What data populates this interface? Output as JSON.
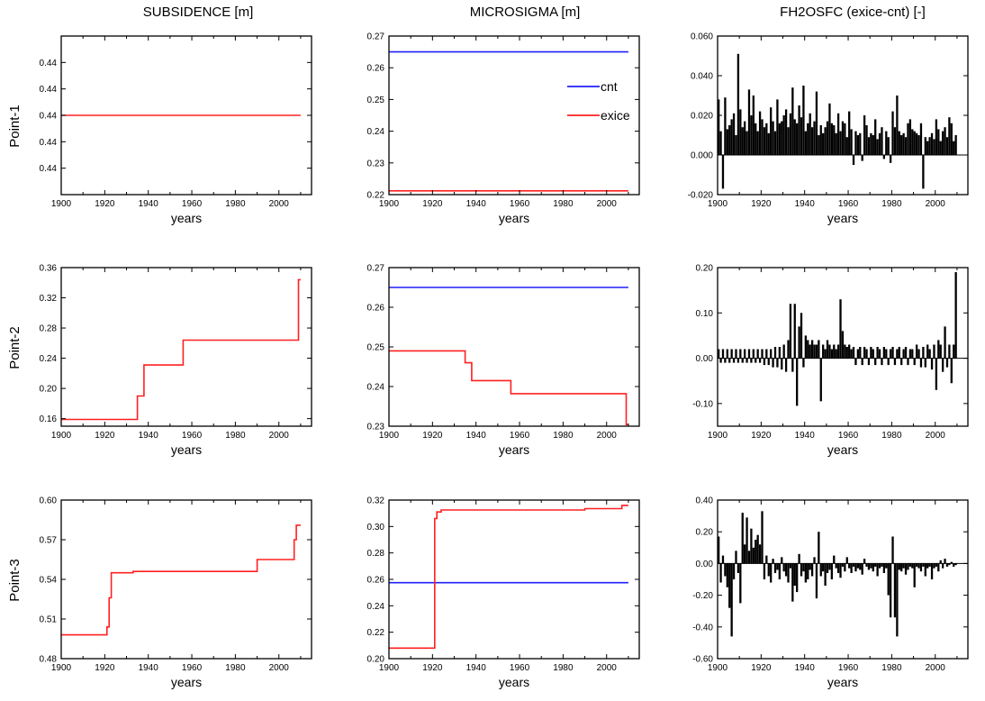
{
  "figure": {
    "columns": [
      "SUBSIDENCE [m]",
      "MICROSIGMA [m]",
      "FH2OSFC (exice-cnt) [-]"
    ],
    "rows": [
      "Point-1",
      "Point-2",
      "Point-3"
    ],
    "line_color": "#ff2020",
    "cnt_color": "#2020ff",
    "bar_color": "#000000"
  },
  "chart_data": [
    {
      "type": "line",
      "column": 0,
      "row": 0,
      "xlabel": "years",
      "xlim": [
        1900,
        2015
      ],
      "xticks": [
        1900,
        1920,
        1940,
        1960,
        1980,
        2000
      ],
      "ylim": [
        0,
        6
      ],
      "yticks": [
        1,
        2,
        3,
        4,
        5
      ],
      "ytick_labels": [
        "0.44",
        "0.44",
        "0.44",
        "0.44",
        "0.44"
      ],
      "series": [
        {
          "color": "#ff2020",
          "points": [
            [
              1900,
              3
            ],
            [
              2010,
              3
            ]
          ]
        }
      ]
    },
    {
      "type": "line",
      "column": 1,
      "row": 0,
      "xlabel": "years",
      "xlim": [
        1900,
        2015
      ],
      "xticks": [
        1900,
        1920,
        1940,
        1960,
        1980,
        2000
      ],
      "ylim": [
        0.22,
        0.27
      ],
      "yticks": [
        0.22,
        0.23,
        0.24,
        0.25,
        0.26,
        0.27
      ],
      "ytick_labels": [
        "0.22",
        "0.23",
        "0.24",
        "0.25",
        "0.26",
        "0.27"
      ],
      "legend": {
        "position": "top-right",
        "entries": [
          {
            "label": "cnt",
            "color": "#2020ff"
          },
          {
            "label": "exice",
            "color": "#ff2020"
          }
        ]
      },
      "series": [
        {
          "name": "cnt",
          "color": "#2020ff",
          "points": [
            [
              1900,
              0.265
            ],
            [
              2010,
              0.265
            ]
          ]
        },
        {
          "name": "exice",
          "color": "#ff2020",
          "points": [
            [
              1900,
              0.2212
            ],
            [
              2010,
              0.2212
            ]
          ]
        }
      ]
    },
    {
      "type": "bar",
      "column": 2,
      "row": 0,
      "xlabel": "years",
      "xlim": [
        1900,
        2015
      ],
      "xticks": [
        1900,
        1920,
        1940,
        1960,
        1980,
        2000
      ],
      "ylim": [
        -0.02,
        0.06
      ],
      "yticks": [
        -0.02,
        0.0,
        0.02,
        0.04,
        0.06
      ],
      "ytick_labels": [
        "-0.020",
        "0.000",
        "0.020",
        "0.040",
        "0.060"
      ],
      "x": [
        1900,
        1901,
        1902,
        1903,
        1904,
        1905,
        1906,
        1907,
        1908,
        1909,
        1910,
        1911,
        1912,
        1913,
        1914,
        1915,
        1916,
        1917,
        1918,
        1919,
        1920,
        1921,
        1922,
        1923,
        1924,
        1925,
        1926,
        1927,
        1928,
        1929,
        1930,
        1931,
        1932,
        1933,
        1934,
        1935,
        1936,
        1937,
        1938,
        1939,
        1940,
        1941,
        1942,
        1943,
        1944,
        1945,
        1946,
        1947,
        1948,
        1949,
        1950,
        1951,
        1952,
        1953,
        1954,
        1955,
        1956,
        1957,
        1958,
        1959,
        1960,
        1961,
        1962,
        1963,
        1964,
        1965,
        1966,
        1967,
        1968,
        1969,
        1970,
        1971,
        1972,
        1973,
        1974,
        1975,
        1976,
        1977,
        1978,
        1979,
        1980,
        1981,
        1982,
        1983,
        1984,
        1985,
        1986,
        1987,
        1988,
        1989,
        1990,
        1991,
        1992,
        1993,
        1994,
        1995,
        1996,
        1997,
        1998,
        1999,
        2000,
        2001,
        2002,
        2003,
        2004,
        2005,
        2006,
        2007,
        2008,
        2009
      ],
      "values": [
        0.028,
        0.012,
        -0.017,
        0.029,
        0.013,
        0.015,
        0.018,
        0.021,
        0.01,
        0.051,
        0.023,
        0.014,
        0.017,
        0.012,
        0.033,
        0.02,
        0.03,
        0.016,
        0.012,
        0.022,
        0.018,
        0.014,
        0.016,
        0.011,
        0.024,
        0.017,
        0.012,
        0.028,
        0.016,
        0.017,
        0.02,
        0.023,
        0.014,
        0.021,
        0.034,
        0.018,
        0.016,
        0.025,
        0.019,
        0.035,
        0.012,
        0.016,
        0.021,
        0.014,
        0.017,
        0.032,
        0.01,
        0.015,
        0.011,
        0.014,
        0.017,
        0.026,
        0.016,
        0.015,
        0.011,
        0.021,
        0.012,
        0.017,
        0.016,
        0.009,
        0.022,
        0.013,
        -0.005,
        0.012,
        0.01,
        0.011,
        -0.003,
        0.02,
        0.015,
        0.009,
        0.011,
        0.01,
        0.018,
        0.008,
        0.011,
        0.014,
        -0.002,
        0.012,
        0.009,
        -0.004,
        0.022,
        0.014,
        0.03,
        0.012,
        0.01,
        0.011,
        0.009,
        0.016,
        0.018,
        0.013,
        0.012,
        0.011,
        0.01,
        0.016,
        -0.017,
        0.009,
        0.007,
        0.009,
        0.011,
        0.008,
        0.018,
        0.013,
        0.007,
        0.012,
        0.014,
        0.009,
        0.019,
        0.016,
        0.007,
        0.01
      ]
    },
    {
      "type": "line",
      "column": 0,
      "row": 1,
      "xlabel": "years",
      "xlim": [
        1900,
        2015
      ],
      "xticks": [
        1900,
        1920,
        1940,
        1960,
        1980,
        2000
      ],
      "ylim": [
        0.15,
        0.36
      ],
      "yticks": [
        0.16,
        0.2,
        0.24,
        0.28,
        0.32,
        0.36
      ],
      "ytick_labels": [
        "0.16",
        "0.20",
        "0.24",
        "0.28",
        "0.32",
        "0.36"
      ],
      "series": [
        {
          "color": "#ff2020",
          "points": [
            [
              1900,
              0.159
            ],
            [
              1935,
              0.159
            ],
            [
              1935,
              0.19
            ],
            [
              1938,
              0.19
            ],
            [
              1938,
              0.231
            ],
            [
              1956,
              0.231
            ],
            [
              1956,
              0.264
            ],
            [
              2009,
              0.264
            ],
            [
              2009,
              0.344
            ],
            [
              2010,
              0.344
            ]
          ]
        }
      ]
    },
    {
      "type": "line",
      "column": 1,
      "row": 1,
      "xlabel": "years",
      "xlim": [
        1900,
        2015
      ],
      "xticks": [
        1900,
        1920,
        1940,
        1960,
        1980,
        2000
      ],
      "ylim": [
        0.23,
        0.27
      ],
      "yticks": [
        0.23,
        0.24,
        0.25,
        0.26,
        0.27
      ],
      "ytick_labels": [
        "0.23",
        "0.24",
        "0.25",
        "0.26",
        "0.27"
      ],
      "series": [
        {
          "name": "cnt",
          "color": "#2020ff",
          "points": [
            [
              1900,
              0.265
            ],
            [
              2010,
              0.265
            ]
          ]
        },
        {
          "name": "exice",
          "color": "#ff2020",
          "points": [
            [
              1900,
              0.249
            ],
            [
              1935,
              0.249
            ],
            [
              1935,
              0.246
            ],
            [
              1938,
              0.246
            ],
            [
              1938,
              0.2415
            ],
            [
              1956,
              0.2415
            ],
            [
              1956,
              0.2382
            ],
            [
              2009,
              0.2382
            ],
            [
              2009,
              0.2304
            ],
            [
              2010,
              0.2304
            ]
          ]
        }
      ]
    },
    {
      "type": "bar",
      "column": 2,
      "row": 1,
      "xlabel": "years",
      "xlim": [
        1900,
        2015
      ],
      "xticks": [
        1900,
        1920,
        1940,
        1960,
        1980,
        2000
      ],
      "ylim": [
        -0.15,
        0.2
      ],
      "yticks": [
        -0.1,
        0.0,
        0.1,
        0.2
      ],
      "ytick_labels": [
        "-0.10",
        "0.00",
        "0.10",
        "0.20"
      ],
      "x": [
        1900,
        1901,
        1902,
        1903,
        1904,
        1905,
        1906,
        1907,
        1908,
        1909,
        1910,
        1911,
        1912,
        1913,
        1914,
        1915,
        1916,
        1917,
        1918,
        1919,
        1920,
        1921,
        1922,
        1923,
        1924,
        1925,
        1926,
        1927,
        1928,
        1929,
        1930,
        1931,
        1932,
        1933,
        1934,
        1935,
        1936,
        1937,
        1938,
        1939,
        1940,
        1941,
        1942,
        1943,
        1944,
        1945,
        1946,
        1947,
        1948,
        1949,
        1950,
        1951,
        1952,
        1953,
        1954,
        1955,
        1956,
        1957,
        1958,
        1959,
        1960,
        1961,
        1962,
        1963,
        1964,
        1965,
        1966,
        1967,
        1968,
        1969,
        1970,
        1971,
        1972,
        1973,
        1974,
        1975,
        1976,
        1977,
        1978,
        1979,
        1980,
        1981,
        1982,
        1983,
        1984,
        1985,
        1986,
        1987,
        1988,
        1989,
        1990,
        1991,
        1992,
        1993,
        1994,
        1995,
        1996,
        1997,
        1998,
        1999,
        2000,
        2001,
        2002,
        2003,
        2004,
        2005,
        2006,
        2007,
        2008,
        2009
      ],
      "values": [
        0.02,
        -0.01,
        0.02,
        -0.01,
        0.02,
        -0.01,
        0.02,
        -0.01,
        0.02,
        -0.01,
        0.02,
        -0.01,
        0.02,
        -0.01,
        0.02,
        -0.01,
        0.02,
        -0.01,
        0.02,
        -0.01,
        0.02,
        -0.015,
        0.02,
        -0.015,
        0.02,
        -0.02,
        0.025,
        -0.02,
        0.025,
        -0.025,
        0.03,
        -0.03,
        0.04,
        0.12,
        -0.03,
        0.12,
        -0.105,
        0.07,
        0.1,
        -0.02,
        0.05,
        0.04,
        0.03,
        0.04,
        0.03,
        0.03,
        0.04,
        -0.095,
        0.03,
        0.02,
        0.04,
        0.03,
        0.02,
        0.03,
        0.02,
        0.03,
        0.13,
        0.06,
        0.03,
        0.025,
        0.03,
        0.02,
        0.025,
        -0.015,
        0.02,
        0.025,
        -0.015,
        0.025,
        0.02,
        -0.015,
        0.025,
        0.02,
        -0.015,
        0.025,
        0.02,
        -0.015,
        0.025,
        0.02,
        -0.015,
        0.02,
        0.025,
        -0.015,
        0.02,
        0.025,
        -0.015,
        0.02,
        0.025,
        -0.015,
        0.02,
        0.02,
        -0.015,
        0.03,
        0.02,
        -0.02,
        0.025,
        -0.02,
        0.03,
        0.02,
        -0.025,
        0.03,
        -0.07,
        0.04,
        0.03,
        -0.03,
        0.07,
        -0.02,
        0.03,
        -0.055,
        0.03,
        0.19
      ]
    },
    {
      "type": "line",
      "column": 0,
      "row": 2,
      "xlabel": "years",
      "xlim": [
        1900,
        2015
      ],
      "xticks": [
        1900,
        1920,
        1940,
        1960,
        1980,
        2000
      ],
      "ylim": [
        0.48,
        0.6
      ],
      "yticks": [
        0.48,
        0.51,
        0.54,
        0.57,
        0.6
      ],
      "ytick_labels": [
        "0.48",
        "0.51",
        "0.54",
        "0.57",
        "0.60"
      ],
      "series": [
        {
          "color": "#ff2020",
          "points": [
            [
              1900,
              0.498
            ],
            [
              1921,
              0.498
            ],
            [
              1921,
              0.504
            ],
            [
              1922,
              0.504
            ],
            [
              1922,
              0.526
            ],
            [
              1923,
              0.526
            ],
            [
              1923,
              0.545
            ],
            [
              1933,
              0.545
            ],
            [
              1933,
              0.546
            ],
            [
              1990,
              0.546
            ],
            [
              1990,
              0.555
            ],
            [
              2007,
              0.555
            ],
            [
              2007,
              0.57
            ],
            [
              2008,
              0.57
            ],
            [
              2008,
              0.581
            ],
            [
              2010,
              0.581
            ]
          ]
        }
      ]
    },
    {
      "type": "line",
      "column": 1,
      "row": 2,
      "xlabel": "years",
      "xlim": [
        1900,
        2015
      ],
      "xticks": [
        1900,
        1920,
        1940,
        1960,
        1980,
        2000
      ],
      "ylim": [
        0.2,
        0.32
      ],
      "yticks": [
        0.2,
        0.22,
        0.24,
        0.26,
        0.28,
        0.3,
        0.32
      ],
      "ytick_labels": [
        "0.20",
        "0.22",
        "0.24",
        "0.26",
        "0.28",
        "0.30",
        "0.32"
      ],
      "series": [
        {
          "name": "cnt",
          "color": "#2020ff",
          "points": [
            [
              1900,
              0.2575
            ],
            [
              2010,
              0.2575
            ]
          ]
        },
        {
          "name": "exice",
          "color": "#ff2020",
          "points": [
            [
              1900,
              0.208
            ],
            [
              1921,
              0.208
            ],
            [
              1921,
              0.306
            ],
            [
              1922,
              0.306
            ],
            [
              1922,
              0.311
            ],
            [
              1924,
              0.311
            ],
            [
              1924,
              0.3125
            ],
            [
              1990,
              0.3125
            ],
            [
              1990,
              0.3135
            ],
            [
              2007,
              0.3135
            ],
            [
              2007,
              0.316
            ],
            [
              2010,
              0.316
            ]
          ]
        }
      ]
    },
    {
      "type": "bar",
      "column": 2,
      "row": 2,
      "xlabel": "years",
      "xlim": [
        1900,
        2015
      ],
      "xticks": [
        1900,
        1920,
        1940,
        1960,
        1980,
        2000
      ],
      "ylim": [
        -0.6,
        0.4
      ],
      "yticks": [
        -0.6,
        -0.4,
        -0.2,
        0.0,
        0.2,
        0.4
      ],
      "ytick_labels": [
        "-0.60",
        "-0.40",
        "-0.20",
        "0.00",
        "0.20",
        "0.40"
      ],
      "x": [
        1900,
        1901,
        1902,
        1903,
        1904,
        1905,
        1906,
        1907,
        1908,
        1909,
        1910,
        1911,
        1912,
        1913,
        1914,
        1915,
        1916,
        1917,
        1918,
        1919,
        1920,
        1921,
        1922,
        1923,
        1924,
        1925,
        1926,
        1927,
        1928,
        1929,
        1930,
        1931,
        1932,
        1933,
        1934,
        1935,
        1936,
        1937,
        1938,
        1939,
        1940,
        1941,
        1942,
        1943,
        1944,
        1945,
        1946,
        1947,
        1948,
        1949,
        1950,
        1951,
        1952,
        1953,
        1954,
        1955,
        1956,
        1957,
        1958,
        1959,
        1960,
        1961,
        1962,
        1963,
        1964,
        1965,
        1966,
        1967,
        1968,
        1969,
        1970,
        1971,
        1972,
        1973,
        1974,
        1975,
        1976,
        1977,
        1978,
        1979,
        1980,
        1981,
        1982,
        1983,
        1984,
        1985,
        1986,
        1987,
        1988,
        1989,
        1990,
        1991,
        1992,
        1993,
        1994,
        1995,
        1996,
        1997,
        1998,
        1999,
        2000,
        2001,
        2002,
        2003,
        2004,
        2005,
        2006,
        2007,
        2008,
        2009
      ],
      "values": [
        0.17,
        -0.12,
        0.05,
        -0.08,
        -0.15,
        -0.28,
        -0.46,
        -0.1,
        0.08,
        -0.06,
        -0.25,
        0.32,
        0.12,
        0.29,
        0.08,
        0.22,
        0.1,
        0.15,
        0.18,
        0.12,
        0.33,
        -0.1,
        0.05,
        -0.08,
        -0.12,
        0.03,
        -0.06,
        -0.04,
        -0.1,
        0.04,
        -0.05,
        -0.08,
        -0.12,
        -0.03,
        -0.24,
        -0.14,
        -0.18,
        0.06,
        -0.08,
        -0.05,
        -0.12,
        -0.1,
        -0.04,
        -0.08,
        0.04,
        -0.22,
        0.2,
        -0.08,
        -0.05,
        -0.14,
        -0.06,
        -0.04,
        -0.1,
        0.05,
        -0.03,
        -0.06,
        -0.09,
        -0.02,
        -0.05,
        0.04,
        -0.03,
        -0.06,
        -0.02,
        -0.05,
        -0.03,
        -0.04,
        -0.07,
        0.03,
        -0.02,
        -0.04,
        -0.03,
        -0.05,
        -0.02,
        -0.08,
        -0.03,
        -0.02,
        -0.06,
        -0.03,
        -0.2,
        -0.34,
        0.17,
        -0.34,
        -0.46,
        -0.04,
        -0.05,
        -0.03,
        -0.07,
        -0.04,
        -0.02,
        -0.03,
        -0.15,
        -0.02,
        -0.03,
        -0.05,
        -0.02,
        -0.08,
        -0.03,
        -0.02,
        -0.1,
        -0.03,
        -0.02,
        -0.05,
        0.02,
        -0.03,
        0.03,
        -0.02,
        -0.01,
        0.01,
        -0.02,
        -0.01
      ]
    }
  ]
}
